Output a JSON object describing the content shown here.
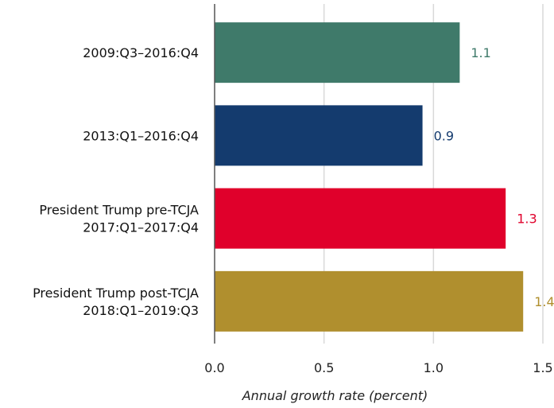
{
  "chart_data": {
    "type": "bar",
    "orientation": "horizontal",
    "title": "",
    "xlabel": "Annual growth rate (percent)",
    "ylabel": "",
    "xlim": [
      0,
      1.5
    ],
    "xticks": [
      "0.0",
      "0.5",
      "1.0",
      "1.5"
    ],
    "grid": true,
    "categories": [
      {
        "lines": [
          "2009:Q3–2016:Q4"
        ]
      },
      {
        "lines": [
          "2013:Q1–2016:Q4"
        ]
      },
      {
        "lines": [
          "President Trump pre-TCJA",
          "2017:Q1–2017:Q4"
        ]
      },
      {
        "lines": [
          "President Trump post-TCJA",
          "2018:Q1–2019:Q3"
        ]
      }
    ],
    "values": [
      1.12,
      0.95,
      1.33,
      1.41
    ],
    "value_labels": [
      "1.1",
      "0.9",
      "1.3",
      "1.4"
    ],
    "colors": [
      "#3f7a6a",
      "#143b6e",
      "#e0002b",
      "#b08f2e"
    ]
  }
}
